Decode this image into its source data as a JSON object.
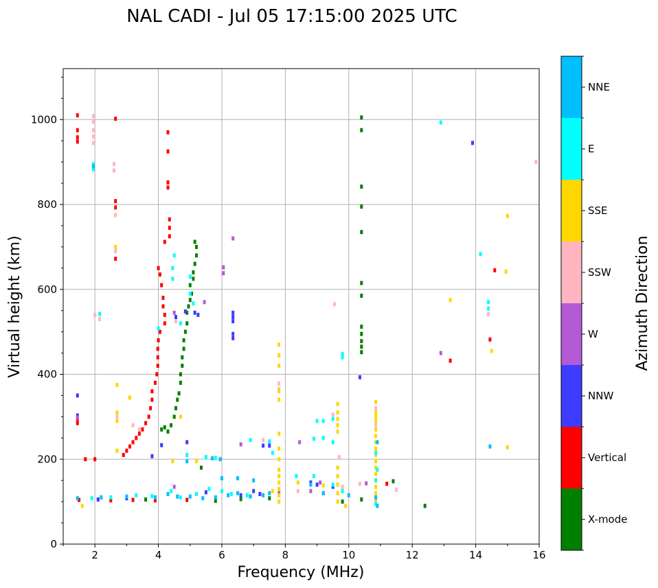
{
  "chart_data": {
    "type": "scatter",
    "title": "NAL CADI - Jul 05 17:15:00 2025 UTC",
    "xlabel": "Frequency (MHz)",
    "ylabel": "Virtual height (km)",
    "xlim": [
      1,
      16
    ],
    "ylim": [
      0,
      1120
    ],
    "xticks": [
      2,
      4,
      6,
      8,
      10,
      12,
      14,
      16
    ],
    "yticks": [
      0,
      200,
      400,
      600,
      800,
      1000
    ],
    "grid": true,
    "colorbar": {
      "label": "Azimuth Direction",
      "categories": [
        "X-mode",
        "Vertical",
        "NNW",
        "W",
        "SSW",
        "SSE",
        "E",
        "NNE"
      ],
      "colors": [
        "#008000",
        "#ff0000",
        "#3c3cff",
        "#b45ad7",
        "#ffb6c1",
        "#ffd700",
        "#00ffff",
        "#00bfff"
      ]
    },
    "series": [
      {
        "name": "X-mode",
        "color": "#008000",
        "points": [
          [
            10.4,
            1005
          ],
          [
            10.4,
            975
          ],
          [
            10.4,
            842
          ],
          [
            10.4,
            795
          ],
          [
            10.4,
            735
          ],
          [
            10.4,
            615
          ],
          [
            10.4,
            585
          ],
          [
            10.4,
            512
          ],
          [
            10.4,
            495
          ],
          [
            10.4,
            478
          ],
          [
            10.4,
            465
          ],
          [
            10.4,
            452
          ],
          [
            10.4,
            105
          ],
          [
            4.1,
            270
          ],
          [
            4.2,
            275
          ],
          [
            4.3,
            265
          ],
          [
            4.4,
            280
          ],
          [
            4.5,
            300
          ],
          [
            4.55,
            320
          ],
          [
            4.6,
            340
          ],
          [
            4.65,
            355
          ],
          [
            4.7,
            380
          ],
          [
            4.7,
            400
          ],
          [
            4.75,
            420
          ],
          [
            4.75,
            440
          ],
          [
            4.8,
            460
          ],
          [
            4.8,
            480
          ],
          [
            4.85,
            500
          ],
          [
            4.9,
            520
          ],
          [
            4.9,
            545
          ],
          [
            4.95,
            560
          ],
          [
            5.0,
            575
          ],
          [
            5.05,
            590
          ],
          [
            5.0,
            610
          ],
          [
            5.1,
            625
          ],
          [
            5.1,
            640
          ],
          [
            5.15,
            660
          ],
          [
            5.2,
            680
          ],
          [
            5.2,
            700
          ],
          [
            5.15,
            712
          ],
          [
            5.35,
            180
          ],
          [
            12.4,
            90
          ],
          [
            11.4,
            148
          ],
          [
            9.8,
            100
          ],
          [
            6.6,
            106
          ],
          [
            7.5,
            108
          ],
          [
            3.6,
            105
          ],
          [
            5.8,
            102
          ]
        ]
      },
      {
        "name": "Vertical",
        "color": "#ff0000",
        "points": [
          [
            1.45,
            1010
          ],
          [
            1.45,
            975
          ],
          [
            1.45,
            958
          ],
          [
            1.45,
            948
          ],
          [
            1.45,
            295
          ],
          [
            1.45,
            285
          ],
          [
            4.3,
            970
          ],
          [
            4.3,
            925
          ],
          [
            4.3,
            852
          ],
          [
            4.3,
            840
          ],
          [
            4.35,
            765
          ],
          [
            4.35,
            745
          ],
          [
            4.35,
            725
          ],
          [
            4.2,
            712
          ],
          [
            2.65,
            808
          ],
          [
            2.65,
            793
          ],
          [
            2.65,
            672
          ],
          [
            2.65,
            1002
          ],
          [
            4.0,
            650
          ],
          [
            4.05,
            635
          ],
          [
            4.1,
            610
          ],
          [
            4.15,
            580
          ],
          [
            4.15,
            560
          ],
          [
            4.2,
            540
          ],
          [
            4.2,
            520
          ],
          [
            4.05,
            500
          ],
          [
            4.0,
            480
          ],
          [
            3.98,
            460
          ],
          [
            3.98,
            440
          ],
          [
            3.98,
            420
          ],
          [
            3.95,
            400
          ],
          [
            3.9,
            380
          ],
          [
            3.8,
            360
          ],
          [
            3.8,
            340
          ],
          [
            3.75,
            320
          ],
          [
            3.7,
            300
          ],
          [
            3.6,
            285
          ],
          [
            3.5,
            270
          ],
          [
            3.4,
            260
          ],
          [
            3.3,
            250
          ],
          [
            3.2,
            240
          ],
          [
            3.1,
            230
          ],
          [
            3.0,
            220
          ],
          [
            2.9,
            210
          ],
          [
            1.7,
            200
          ],
          [
            2.0,
            200
          ],
          [
            14.45,
            482
          ],
          [
            13.2,
            432
          ],
          [
            14.6,
            645
          ],
          [
            11.2,
            142
          ],
          [
            1.5,
            104
          ],
          [
            2.5,
            103
          ],
          [
            3.2,
            104
          ],
          [
            3.9,
            103
          ],
          [
            4.9,
            104
          ]
        ]
      },
      {
        "name": "NNW",
        "color": "#3c3cff",
        "points": [
          [
            6.35,
            545
          ],
          [
            6.35,
            535
          ],
          [
            6.35,
            525
          ],
          [
            6.35,
            495
          ],
          [
            6.35,
            485
          ],
          [
            1.45,
            350
          ],
          [
            1.45,
            303
          ],
          [
            5.15,
            545
          ],
          [
            5.25,
            540
          ],
          [
            4.55,
            535
          ],
          [
            4.85,
            548
          ],
          [
            13.9,
            945
          ],
          [
            10.35,
            393
          ],
          [
            4.1,
            233
          ],
          [
            7.3,
            232
          ],
          [
            7.5,
            232
          ],
          [
            4.9,
            240
          ],
          [
            3.8,
            207
          ],
          [
            8.8,
            145
          ],
          [
            9.0,
            140
          ],
          [
            9.2,
            120
          ],
          [
            9.5,
            135
          ],
          [
            7.2,
            118
          ],
          [
            7.0,
            125
          ],
          [
            6.6,
            115
          ],
          [
            5.5,
            122
          ],
          [
            3.0,
            108
          ],
          [
            2.1,
            105
          ]
        ]
      },
      {
        "name": "W",
        "color": "#b45ad7",
        "points": [
          [
            6.35,
            720
          ],
          [
            5.45,
            570
          ],
          [
            6.05,
            652
          ],
          [
            6.05,
            638
          ],
          [
            4.5,
            545
          ],
          [
            12.9,
            450
          ],
          [
            8.45,
            240
          ],
          [
            6.6,
            235
          ],
          [
            1.45,
            298
          ],
          [
            4.5,
            135
          ],
          [
            10.55,
            143
          ],
          [
            9.1,
            145
          ],
          [
            8.8,
            125
          ],
          [
            7.8,
            120
          ]
        ]
      },
      {
        "name": "SSW",
        "color": "#ffb6c1",
        "points": [
          [
            1.95,
            1008
          ],
          [
            1.95,
            995
          ],
          [
            1.95,
            975
          ],
          [
            1.95,
            960
          ],
          [
            1.95,
            945
          ],
          [
            2.6,
            895
          ],
          [
            2.6,
            880
          ],
          [
            2.65,
            775
          ],
          [
            2.65,
            690
          ],
          [
            3.2,
            280
          ],
          [
            3.4,
            270
          ],
          [
            7.8,
            365
          ],
          [
            7.8,
            378
          ],
          [
            9.55,
            565
          ],
          [
            14.4,
            542
          ],
          [
            15.9,
            900
          ],
          [
            11.5,
            128
          ],
          [
            8.4,
            125
          ],
          [
            9.5,
            305
          ],
          [
            9.8,
            135
          ],
          [
            2.0,
            540
          ],
          [
            2.15,
            530
          ],
          [
            4.55,
            525
          ],
          [
            10.35,
            142
          ],
          [
            7.3,
            245
          ],
          [
            2.7,
            300
          ],
          [
            9.7,
            205
          ],
          [
            10.85,
            280
          ],
          [
            10.85,
            320
          ]
        ]
      },
      {
        "name": "SSE",
        "color": "#ffd700",
        "points": [
          [
            7.8,
            470
          ],
          [
            7.8,
            445
          ],
          [
            7.8,
            420
          ],
          [
            7.8,
            360
          ],
          [
            7.8,
            340
          ],
          [
            7.8,
            260
          ],
          [
            7.8,
            225
          ],
          [
            7.8,
            200
          ],
          [
            7.8,
            175
          ],
          [
            7.8,
            160
          ],
          [
            7.8,
            145
          ],
          [
            7.8,
            130
          ],
          [
            7.8,
            115
          ],
          [
            7.8,
            100
          ],
          [
            9.65,
            330
          ],
          [
            9.65,
            310
          ],
          [
            9.65,
            295
          ],
          [
            9.65,
            280
          ],
          [
            9.65,
            265
          ],
          [
            9.65,
            180
          ],
          [
            9.65,
            160
          ],
          [
            9.65,
            140
          ],
          [
            9.65,
            120
          ],
          [
            9.65,
            100
          ],
          [
            10.85,
            335
          ],
          [
            10.85,
            310
          ],
          [
            10.85,
            300
          ],
          [
            10.85,
            290
          ],
          [
            10.85,
            270
          ],
          [
            10.85,
            255
          ],
          [
            10.85,
            240
          ],
          [
            10.85,
            225
          ],
          [
            10.85,
            210
          ],
          [
            10.85,
            195
          ],
          [
            10.85,
            180
          ],
          [
            10.85,
            165
          ],
          [
            10.85,
            150
          ],
          [
            10.85,
            135
          ],
          [
            10.85,
            120
          ],
          [
            10.85,
            105
          ],
          [
            2.7,
            375
          ],
          [
            3.1,
            345
          ],
          [
            2.7,
            310
          ],
          [
            2.7,
            290
          ],
          [
            4.7,
            300
          ],
          [
            2.7,
            220
          ],
          [
            4.45,
            195
          ],
          [
            1.6,
            90
          ],
          [
            9.9,
            90
          ],
          [
            2.65,
            700
          ],
          [
            15.0,
            773
          ],
          [
            14.95,
            642
          ],
          [
            13.2,
            575
          ],
          [
            14.5,
            455
          ],
          [
            15.0,
            228
          ],
          [
            8.4,
            145
          ],
          [
            9.2,
            138
          ],
          [
            7.6,
            125
          ],
          [
            5.2,
            195
          ]
        ]
      },
      {
        "name": "E",
        "color": "#00ffff",
        "points": [
          [
            12.9,
            993
          ],
          [
            14.15,
            683
          ],
          [
            14.4,
            570
          ],
          [
            14.4,
            555
          ],
          [
            9.8,
            448
          ],
          [
            9.8,
            440
          ],
          [
            4.5,
            680
          ],
          [
            4.45,
            650
          ],
          [
            5.0,
            630
          ],
          [
            4.45,
            625
          ],
          [
            5.0,
            590
          ],
          [
            1.95,
            895
          ],
          [
            1.95,
            883
          ],
          [
            2.15,
            542
          ],
          [
            4.0,
            508
          ],
          [
            4.7,
            520
          ],
          [
            5.1,
            567
          ],
          [
            9.0,
            290
          ],
          [
            9.2,
            290
          ],
          [
            9.5,
            295
          ],
          [
            8.9,
            248
          ],
          [
            9.2,
            250
          ],
          [
            9.5,
            240
          ],
          [
            7.5,
            242
          ],
          [
            6.9,
            245
          ],
          [
            7.6,
            215
          ],
          [
            8.35,
            160
          ],
          [
            8.9,
            160
          ],
          [
            9.5,
            140
          ],
          [
            4.9,
            210
          ],
          [
            5.5,
            205
          ],
          [
            5.8,
            203
          ],
          [
            10.85,
            95
          ],
          [
            10.85,
            150
          ],
          [
            10.9,
            175
          ],
          [
            10.85,
            215
          ],
          [
            9.8,
            125
          ],
          [
            5.6,
            130
          ],
          [
            6.0,
            125
          ],
          [
            6.3,
            118
          ],
          [
            6.8,
            115
          ],
          [
            4.4,
            125
          ],
          [
            4.7,
            110
          ],
          [
            5.2,
            118
          ],
          [
            3.8,
            113
          ],
          [
            3.3,
            115
          ],
          [
            2.5,
            110
          ],
          [
            1.9,
            108
          ]
        ]
      },
      {
        "name": "NNE",
        "color": "#00bfff",
        "points": [
          [
            1.95,
            890
          ],
          [
            1.45,
            108
          ],
          [
            2.2,
            110
          ],
          [
            3.0,
            112
          ],
          [
            3.9,
            110
          ],
          [
            4.3,
            118
          ],
          [
            4.6,
            112
          ],
          [
            5.0,
            112
          ],
          [
            5.4,
            108
          ],
          [
            5.8,
            110
          ],
          [
            6.2,
            115
          ],
          [
            6.5,
            120
          ],
          [
            6.9,
            112
          ],
          [
            7.3,
            115
          ],
          [
            7.5,
            120
          ],
          [
            10.85,
            110
          ],
          [
            10.0,
            115
          ],
          [
            10.9,
            90
          ],
          [
            10.9,
            240
          ],
          [
            14.45,
            230
          ],
          [
            4.9,
            195
          ],
          [
            5.7,
            202
          ],
          [
            5.95,
            200
          ],
          [
            9.2,
            120
          ],
          [
            8.8,
            140
          ],
          [
            6.0,
            155
          ],
          [
            6.5,
            155
          ],
          [
            7.0,
            150
          ]
        ]
      }
    ]
  }
}
